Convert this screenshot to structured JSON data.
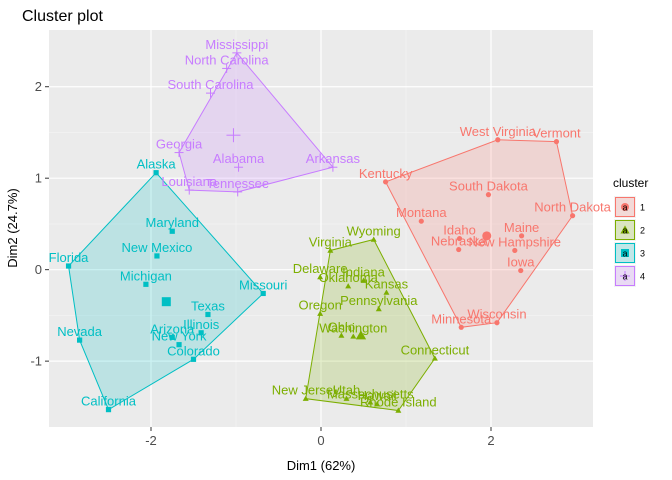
{
  "chart_data": {
    "type": "scatter",
    "title": "Cluster plot",
    "xlabel": "Dim1 (62%)",
    "ylabel": "Dim2 (24.7%)",
    "xlim": [
      -3.2,
      3.2
    ],
    "ylim": [
      -1.72,
      2.62
    ],
    "xticks": [
      -2,
      0,
      2
    ],
    "yticks": [
      -1,
      0,
      1,
      2
    ],
    "x_tick_labels": [
      "-2",
      "0",
      "2"
    ],
    "y_tick_labels": [
      "-1",
      "0",
      "1",
      "2"
    ],
    "grid": true,
    "legend": {
      "title": "cluster",
      "position": "right",
      "labels": [
        "1",
        "2",
        "3",
        "4"
      ],
      "glyph_letter": "a"
    },
    "series": [
      {
        "name": "1",
        "color": "#F8766D",
        "shape": "circle",
        "centroid": [
          1.95,
          0.37
        ],
        "hull": [
          "West Virginia",
          "Vermont",
          "North Dakota",
          "Wisconsin",
          "Minnesota",
          "Kentucky"
        ],
        "points": [
          {
            "label": "West Virginia",
            "x": 2.08,
            "y": 1.42
          },
          {
            "label": "Vermont",
            "x": 2.77,
            "y": 1.4
          },
          {
            "label": "Kentucky",
            "x": 0.76,
            "y": 0.96
          },
          {
            "label": "South Dakota",
            "x": 1.97,
            "y": 0.82
          },
          {
            "label": "North Dakota",
            "x": 2.96,
            "y": 0.59
          },
          {
            "label": "Montana",
            "x": 1.18,
            "y": 0.53
          },
          {
            "label": "Maine",
            "x": 2.36,
            "y": 0.37
          },
          {
            "label": "Idaho",
            "x": 1.63,
            "y": 0.34
          },
          {
            "label": "New Hampshire",
            "x": 2.28,
            "y": 0.21
          },
          {
            "label": "Nebraska",
            "x": 1.62,
            "y": 0.22
          },
          {
            "label": "Iowa",
            "x": 2.35,
            "y": -0.01
          },
          {
            "label": "Wisconsin",
            "x": 2.07,
            "y": -0.58
          },
          {
            "label": "Minnesota",
            "x": 1.65,
            "y": -0.63
          }
        ]
      },
      {
        "name": "2",
        "color": "#7CAE00",
        "shape": "triangle",
        "centroid": [
          0.47,
          -0.72
        ],
        "hull": [
          "Wyoming",
          "Connecticut",
          "Rhode Island",
          "New Jersey",
          "Virginia"
        ],
        "points": [
          {
            "label": "Wyoming",
            "x": 0.62,
            "y": 0.33
          },
          {
            "label": "Virginia",
            "x": 0.11,
            "y": 0.21
          },
          {
            "label": "Delaware",
            "x": -0.01,
            "y": -0.08
          },
          {
            "label": "Indiana",
            "x": 0.5,
            "y": -0.12
          },
          {
            "label": "Oklahoma",
            "x": 0.32,
            "y": -0.18
          },
          {
            "label": "Kansas",
            "x": 0.77,
            "y": -0.25
          },
          {
            "label": "Pennsylvania",
            "x": 0.68,
            "y": -0.43
          },
          {
            "label": "Oregon",
            "x": -0.01,
            "y": -0.48
          },
          {
            "label": "Ohio",
            "x": 0.24,
            "y": -0.72
          },
          {
            "label": "Washington",
            "x": 0.38,
            "y": -0.73
          },
          {
            "label": "Connecticut",
            "x": 1.34,
            "y": -0.97
          },
          {
            "label": "New Jersey",
            "x": -0.18,
            "y": -1.41
          },
          {
            "label": "Utah",
            "x": 0.3,
            "y": -1.41
          },
          {
            "label": "Massachusetts",
            "x": 0.58,
            "y": -1.45
          },
          {
            "label": "Rhode Island",
            "x": 0.91,
            "y": -1.54
          },
          {
            "label": "Hawaii",
            "x": 0.66,
            "y": -1.47
          }
        ]
      },
      {
        "name": "3",
        "color": "#00BFC4",
        "shape": "square",
        "centroid": [
          -1.82,
          -0.35
        ],
        "hull": [
          "Alaska",
          "Missouri",
          "Colorado",
          "California",
          "Nevada",
          "Florida"
        ],
        "points": [
          {
            "label": "Alaska",
            "x": -1.94,
            "y": 1.06
          },
          {
            "label": "Maryland",
            "x": -1.75,
            "y": 0.42
          },
          {
            "label": "New Mexico",
            "x": -1.93,
            "y": 0.15
          },
          {
            "label": "Florida",
            "x": -2.97,
            "y": 0.04
          },
          {
            "label": "Michigan",
            "x": -2.06,
            "y": -0.16
          },
          {
            "label": "Missouri",
            "x": -0.68,
            "y": -0.26
          },
          {
            "label": "Texas",
            "x": -1.33,
            "y": -0.49
          },
          {
            "label": "Illinois",
            "x": -1.41,
            "y": -0.69
          },
          {
            "label": "Arizona",
            "x": -1.75,
            "y": -0.74
          },
          {
            "label": "New York",
            "x": -1.67,
            "y": -0.82
          },
          {
            "label": "Colorado",
            "x": -1.5,
            "y": -0.98
          },
          {
            "label": "Nevada",
            "x": -2.84,
            "y": -0.77
          },
          {
            "label": "California",
            "x": -2.5,
            "y": -1.53
          }
        ]
      },
      {
        "name": "4",
        "color": "#C77CFF",
        "shape": "plus",
        "centroid": [
          -1.03,
          1.47
        ],
        "hull": [
          "Mississippi",
          "Arkansas",
          "Tennessee",
          "Louisiana",
          "Georgia"
        ],
        "points": [
          {
            "label": "Mississippi",
            "x": -0.99,
            "y": 2.37
          },
          {
            "label": "North Carolina",
            "x": -1.11,
            "y": 2.2
          },
          {
            "label": "South Carolina",
            "x": -1.3,
            "y": 1.93
          },
          {
            "label": "Georgia",
            "x": -1.67,
            "y": 1.28
          },
          {
            "label": "Alabama",
            "x": -0.97,
            "y": 1.12
          },
          {
            "label": "Arkansas",
            "x": 0.14,
            "y": 1.12
          },
          {
            "label": "Louisiana",
            "x": -1.55,
            "y": 0.87
          },
          {
            "label": "Tennessee",
            "x": -0.98,
            "y": 0.85
          }
        ]
      }
    ]
  }
}
